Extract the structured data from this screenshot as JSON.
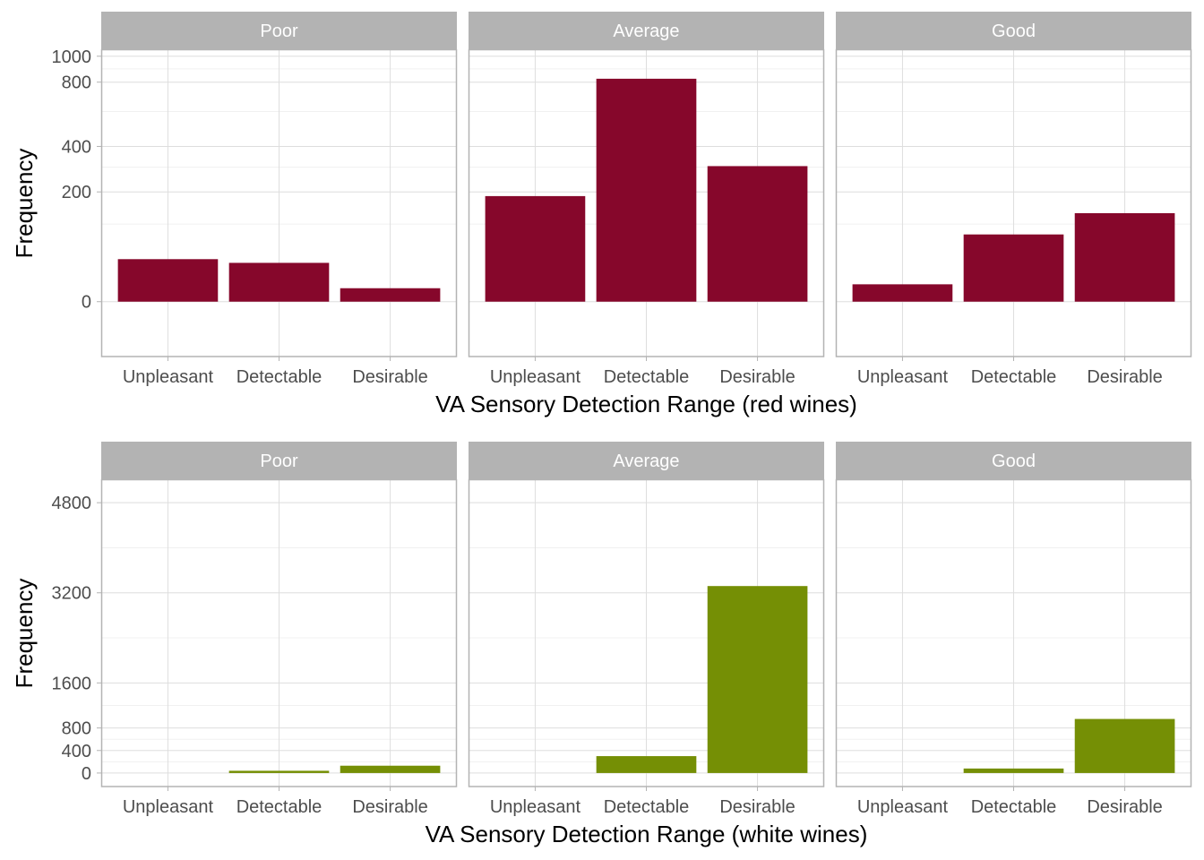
{
  "chart_data": [
    {
      "type": "bar",
      "facets": [
        "Poor",
        "Average",
        "Good"
      ],
      "categories": [
        "Unpleasant",
        "Detectable",
        "Desirable"
      ],
      "panels": [
        {
          "facet": "Poor",
          "values": [
            30,
            25,
            3
          ]
        },
        {
          "facet": "Average",
          "values": [
            185,
            825,
            305
          ]
        },
        {
          "facet": "Good",
          "values": [
            5,
            75,
            130
          ]
        }
      ],
      "xlabel": "VA Sensory Detection Range (red wines)",
      "ylabel": "Frequency",
      "yticks": [
        0,
        200,
        400,
        800,
        1000
      ],
      "ylim": [
        -50,
        1050
      ],
      "y_scale": "sqrt",
      "bar_color": "#86072B",
      "grid": true
    },
    {
      "type": "bar",
      "facets": [
        "Poor",
        "Average",
        "Good"
      ],
      "categories": [
        "Unpleasant",
        "Detectable",
        "Desirable"
      ],
      "panels": [
        {
          "facet": "Poor",
          "values": [
            0,
            40,
            130
          ]
        },
        {
          "facet": "Average",
          "values": [
            0,
            300,
            3320
          ]
        },
        {
          "facet": "Good",
          "values": [
            0,
            80,
            960
          ]
        }
      ],
      "xlabel": "VA Sensory Detection Range (white wines)",
      "ylabel": "Frequency",
      "yticks": [
        0,
        400,
        800,
        1600,
        3200,
        4800
      ],
      "ylim": [
        -240,
        5200
      ],
      "y_scale": "linear",
      "bar_color": "#758F05",
      "grid": true
    }
  ]
}
